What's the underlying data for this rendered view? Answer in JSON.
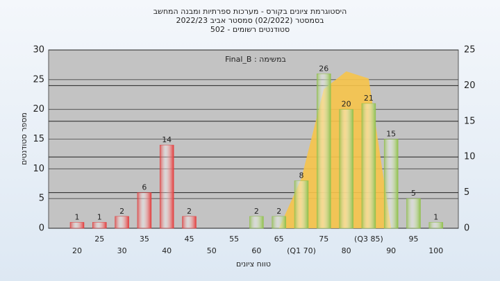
{
  "chart_data": {
    "type": "bar",
    "title": [
      "היסטוגרמת ציונים בקורס - מערכות ספרתיות ומבנה המחשב",
      "בסמסטר (02/2022) סמסטר אביב 2022/23",
      "סטודנטים רשומים - 502"
    ],
    "subtitle": "Final_B : במשימה",
    "y_label": "מספר סטודנטים",
    "x_label": "טווח ציונים",
    "categories": [
      "20",
      "25",
      "30",
      "35",
      "40",
      "45",
      "50",
      "55",
      "60",
      "65",
      "(Q1 70)",
      "75",
      "80",
      "(Q3 85)",
      "90",
      "95",
      "100"
    ],
    "series": [
      {
        "values": [
          1,
          1,
          2,
          6,
          14,
          2,
          0,
          0,
          2,
          2,
          8,
          26,
          20,
          21,
          15,
          5,
          1
        ],
        "colors": [
          "#e23b3b",
          "#e23b3b",
          "#e23b3b",
          "#e23b3b",
          "#e23b3b",
          "#e23b3b",
          "#e23b3b",
          "#8fbf4a",
          "#8fbf4a",
          "#8fbf4a",
          "#8fbf4a",
          "#8fbf4a",
          "#8fbf4a",
          "#8fbf4a",
          "#8fbf4a",
          "#8fbf4a",
          "#8fbf4a"
        ]
      },
      {
        "type": "area",
        "axis": "y2",
        "color": "#f7c44a",
        "values": [
          null,
          null,
          null,
          null,
          null,
          null,
          null,
          null,
          null,
          0,
          7,
          19.5,
          22,
          21,
          0,
          null,
          null
        ]
      }
    ],
    "ylim": [
      0,
      30
    ],
    "yticks": [
      0,
      5,
      10,
      15,
      20,
      25,
      30
    ],
    "y2lim": [
      0,
      25
    ],
    "y2ticks": [
      0,
      5,
      10,
      15,
      20,
      25
    ],
    "grid": true
  }
}
